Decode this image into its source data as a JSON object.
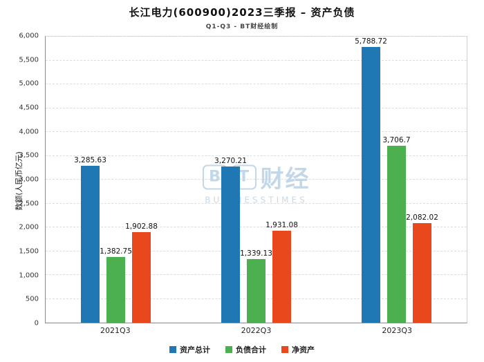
{
  "title": "长江电力(600900)2023三季报 – 资产负债",
  "subtitle": "Q1-Q3 - BT财经绘制",
  "watermark": {
    "tile1": "B",
    "tile2": "T",
    "brand": "财经",
    "sub": "BUSINESSTIMES"
  },
  "chart_data": {
    "type": "bar",
    "title": "长江电力(600900)2023三季报 – 资产负债",
    "subtitle": "Q1-Q3 - BT财经绘制",
    "categories": [
      "2021Q3",
      "2022Q3",
      "2023Q3"
    ],
    "series": [
      {
        "name": "资产总计",
        "color": "#1f77b4",
        "values": [
          3285.63,
          3270.21,
          5788.72
        ],
        "labels": [
          "3,285.63",
          "3,270.21",
          "5,788.72"
        ]
      },
      {
        "name": "负债合计",
        "color": "#4caf50",
        "values": [
          1382.75,
          1339.13,
          3706.7
        ],
        "labels": [
          "1,382.75",
          "1,339.13",
          "3,706.7"
        ]
      },
      {
        "name": "净资产",
        "color": "#e8481c",
        "values": [
          1902.88,
          1931.08,
          2082.02
        ],
        "labels": [
          "1,902.88",
          "1,931.08",
          "2,082.02"
        ]
      }
    ],
    "xlabel": "",
    "ylabel": "数额(人民币亿元)",
    "ylim": [
      0,
      6000
    ],
    "ytick_step": 500,
    "yticks": [
      "0",
      "500",
      "1,000",
      "1,500",
      "2,000",
      "2,500",
      "3,000",
      "3,500",
      "4,000",
      "4,500",
      "5,000",
      "5,500",
      "6,000"
    ],
    "grid": "dashed-horizontal",
    "legend_position": "bottom"
  }
}
